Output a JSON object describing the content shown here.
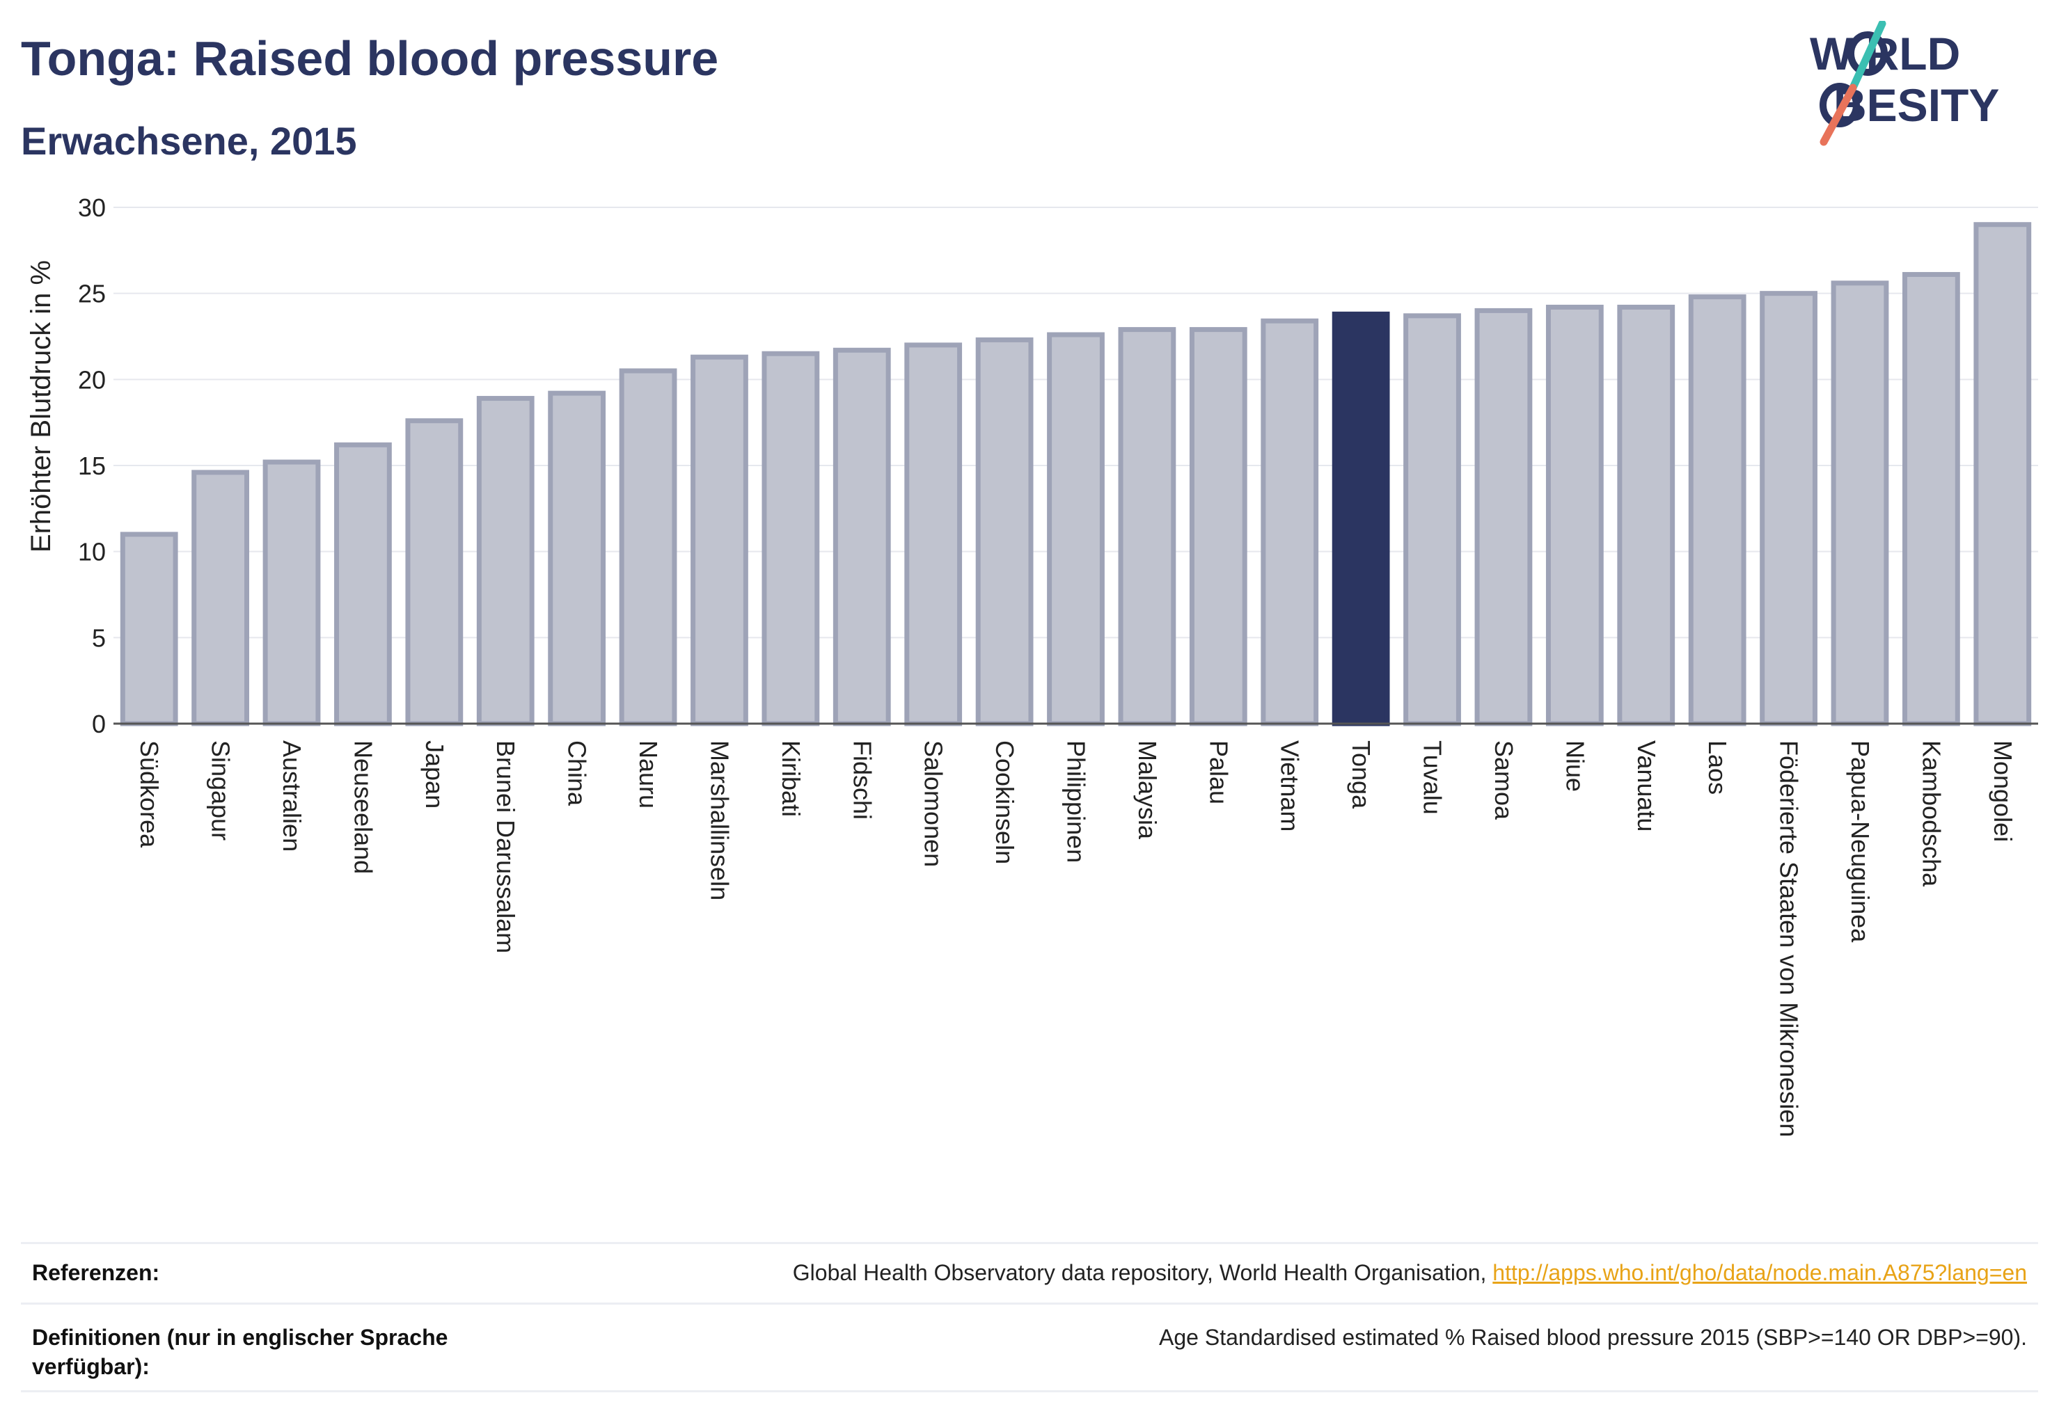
{
  "header": {
    "title": "Tonga: Raised blood pressure",
    "subtitle": "Erwachsene, 2015"
  },
  "logo": {
    "line1": "W RLD",
    "line2": "BESITY",
    "text": "WORLD OBESITY",
    "colors": {
      "text": "#2b3561",
      "slash_top": "#3bbfb2",
      "slash_bottom": "#e8735a"
    }
  },
  "chart_data": {
    "type": "bar",
    "title": "Tonga: Raised blood pressure",
    "subtitle": "Erwachsene, 2015",
    "ylabel": "Erhöhter Blutdruck in %",
    "xlabel": "",
    "ylim": [
      0,
      30
    ],
    "yticks": [
      0,
      5,
      10,
      15,
      20,
      25,
      30
    ],
    "grid": true,
    "highlight": "Tonga",
    "colors": {
      "bar": "#c0c3cf",
      "bar_border": "#9ea3b7",
      "highlight": "#2b3561"
    },
    "categories": [
      "Südkorea",
      "Singapur",
      "Australien",
      "Neuseeland",
      "Japan",
      "Brunei Darussalam",
      "China",
      "Nauru",
      "Marshallinseln",
      "Kiribati",
      "Fidschi",
      "Salomonen",
      "Cookinseln",
      "Philippinen",
      "Malaysia",
      "Palau",
      "Vietnam",
      "Tonga",
      "Tuvalu",
      "Samoa",
      "Niue",
      "Vanuatu",
      "Laos",
      "Föderierte Staaten von Mikronesien",
      "Papua-Neuguinea",
      "Kambodscha",
      "Mongolei"
    ],
    "values": [
      11.0,
      14.6,
      15.2,
      16.2,
      17.6,
      18.9,
      19.2,
      20.5,
      21.3,
      21.5,
      21.7,
      22.0,
      22.3,
      22.6,
      22.9,
      22.9,
      23.4,
      23.8,
      23.7,
      24.0,
      24.2,
      24.2,
      24.8,
      25.0,
      25.6,
      26.1,
      29.0
    ]
  },
  "footer": {
    "references_label": "Referenzen:",
    "references_text": "Global Health Observatory data repository, World Health Organisation, ",
    "references_link": "http://apps.who.int/gho/data/node.main.A875?lang=en",
    "definitions_label_line1": "Definitionen (nur in englischer Sprache",
    "definitions_label_line2": "verfügbar):",
    "definitions_text": "Age Standardised estimated % Raised blood pressure 2015 (SBP>=140 OR DBP>=90)."
  }
}
